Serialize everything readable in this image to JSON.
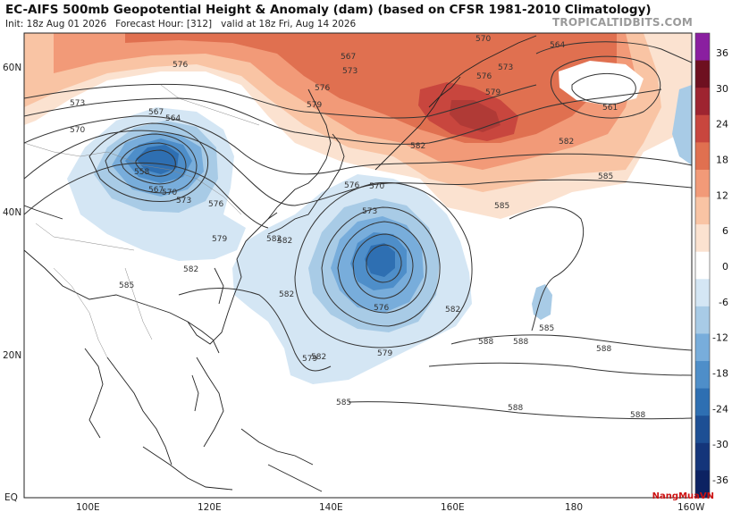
{
  "header": {
    "title": "EC-AIFS 500mb Geopotential Height & Anomaly (dam) (based on CFSR 1981-2010 Climatology)",
    "init": "Init: 18z Aug 01 2026",
    "forecast_hour": "Forecast Hour: [312]",
    "valid": "valid at 18z Fri, Aug 14 2026",
    "brand": "TROPICALTIDBITS.COM"
  },
  "axes": {
    "lat_labels": [
      "60N",
      "40N",
      "20N",
      "EQ"
    ],
    "lon_labels": [
      "100E",
      "120E",
      "140E",
      "160E",
      "180",
      "160W"
    ]
  },
  "colorbar": {
    "labels": [
      "36",
      "30",
      "24",
      "18",
      "12",
      "6",
      "0",
      "-6",
      "-12",
      "-18",
      "-24",
      "-30",
      "-36"
    ],
    "colors": [
      "#8a1fa0",
      "#6e1020",
      "#9e2430",
      "#c8463e",
      "#e07050",
      "#f29a78",
      "#f9c4a4",
      "#fbe2d0",
      "#ffffff",
      "#d4e6f4",
      "#a8cbe6",
      "#78addb",
      "#4e8ec9",
      "#2e6fb2",
      "#1d4f94",
      "#14357a",
      "#0c2262"
    ]
  },
  "contour_labels": [
    "576",
    "570",
    "573",
    "567",
    "564",
    "558",
    "567",
    "570",
    "573",
    "576",
    "579",
    "582",
    "585",
    "567",
    "573",
    "576",
    "579",
    "582",
    "570",
    "576",
    "579",
    "582",
    "585",
    "588",
    "564",
    "561",
    "573",
    "576",
    "579",
    "582",
    "585",
    "588",
    "588",
    "588",
    "585",
    "582",
    "573",
    "570",
    "576",
    "579",
    "582",
    "585",
    "588",
    "582",
    "582"
  ],
  "watermark": "NangMuaVN"
}
